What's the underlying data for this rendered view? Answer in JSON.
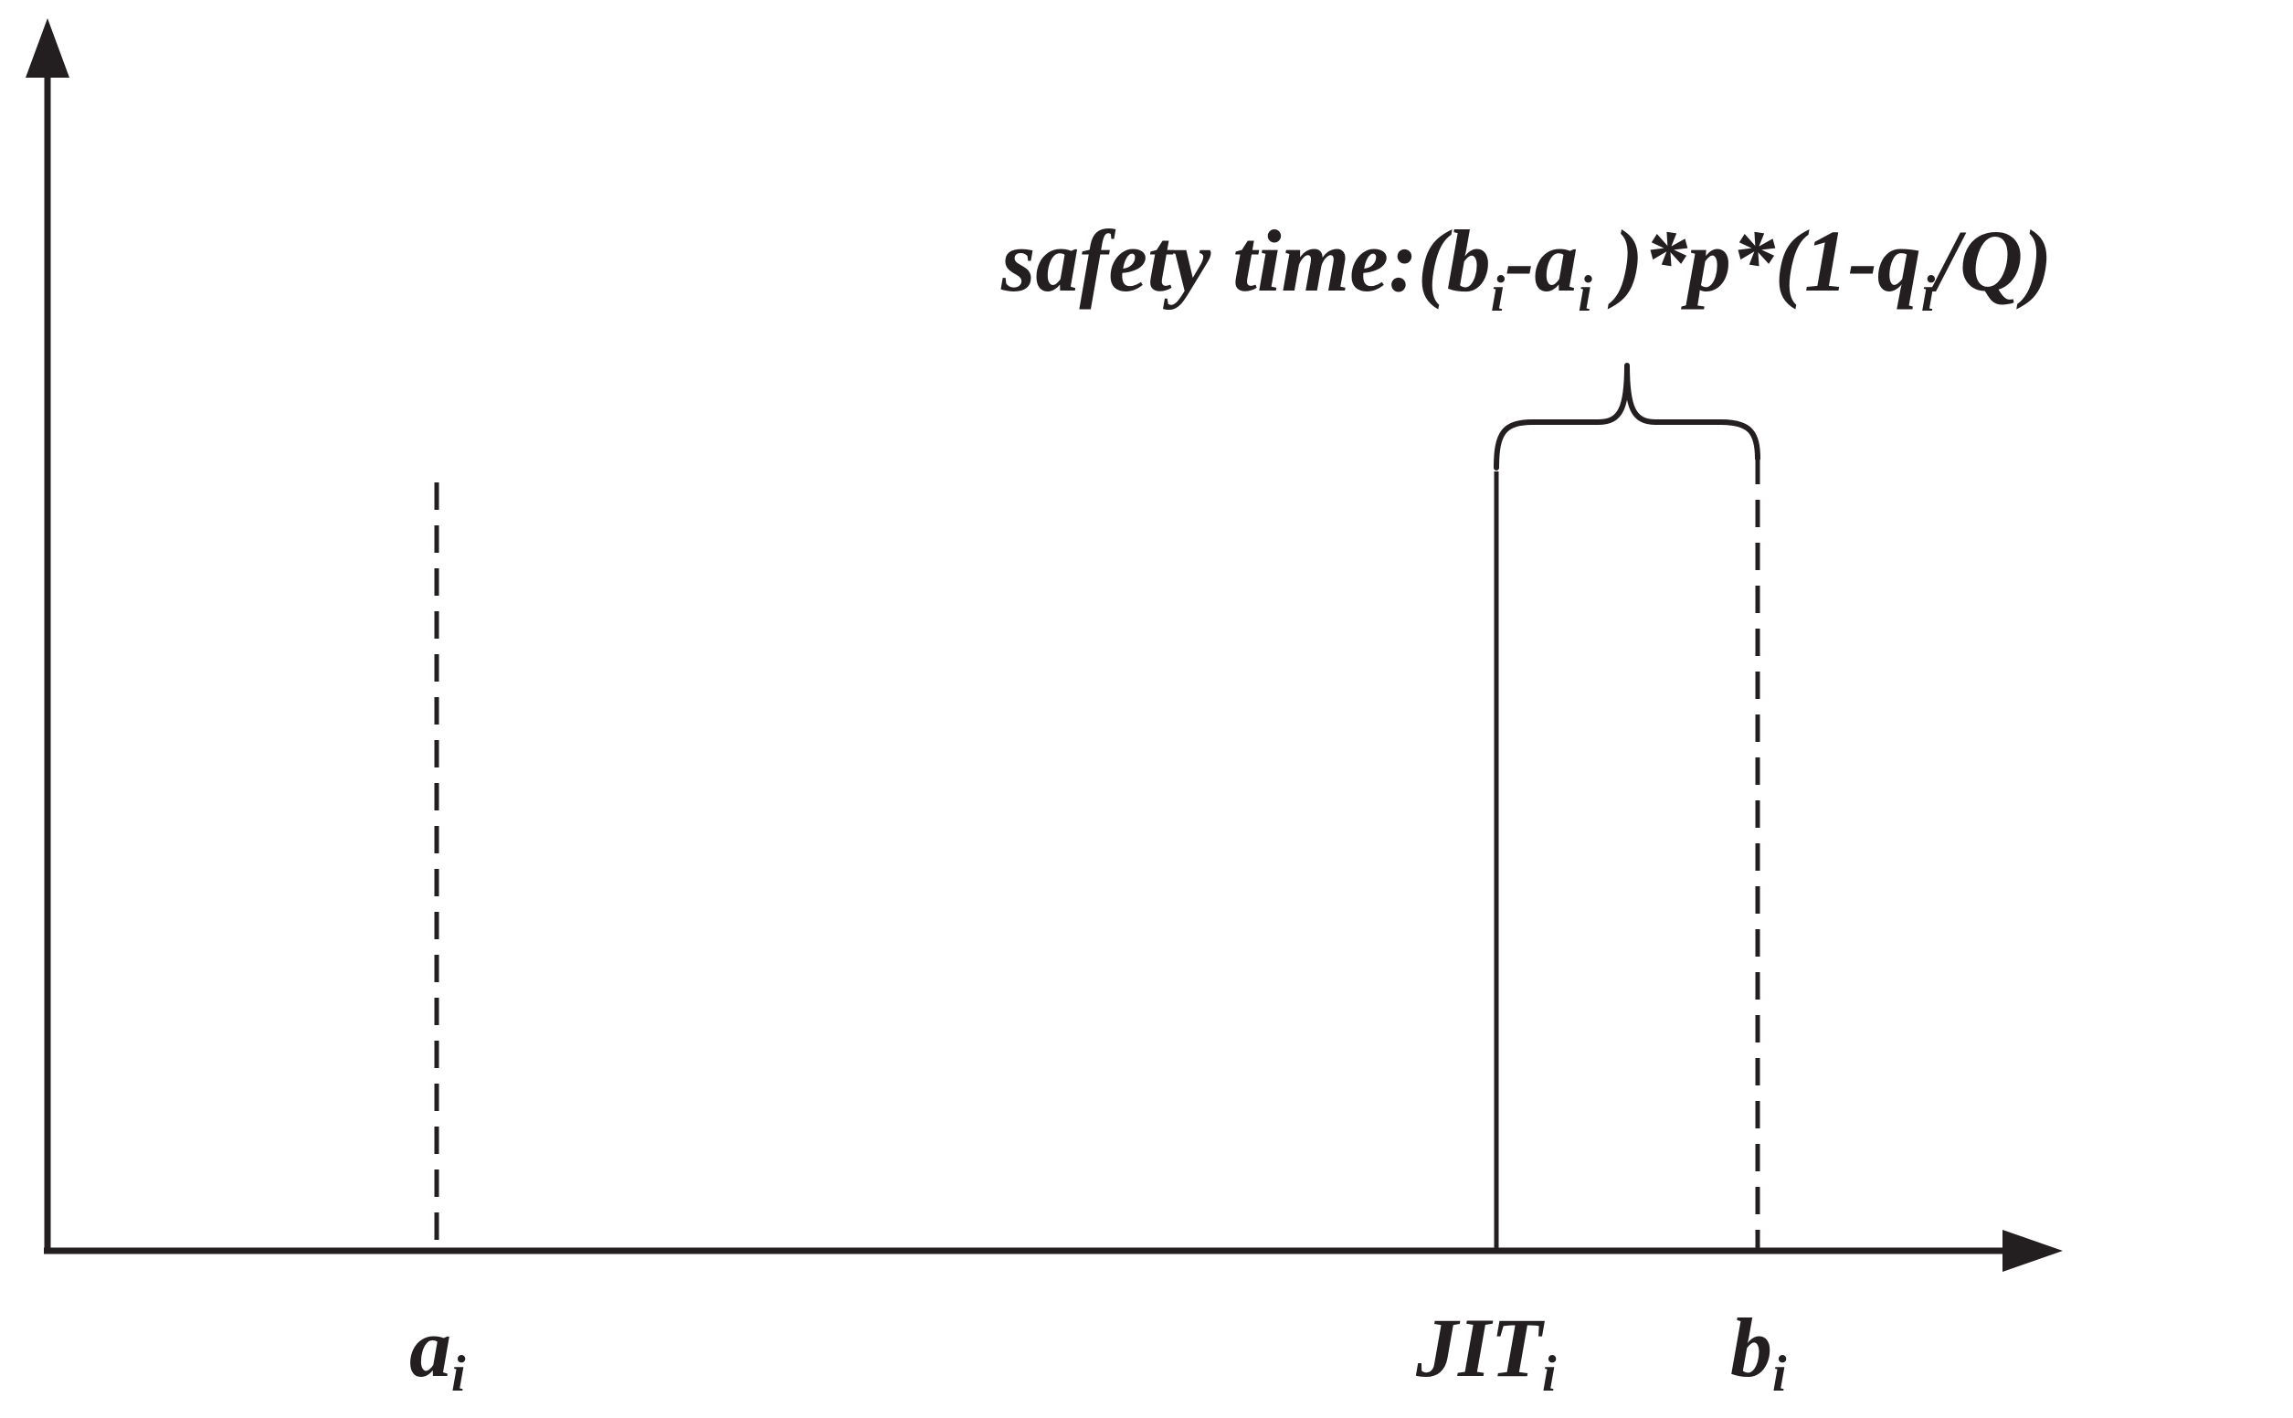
{
  "diagram": {
    "formula": {
      "prefix": "safety time:(b",
      "sub1": "i",
      "mid1": "-a",
      "sub2": "i",
      "mid2": " )*p*(1-q",
      "sub3": "i",
      "suffix": "/Q)"
    },
    "markers": {
      "a": {
        "base": "a",
        "sub": "i"
      },
      "jit": {
        "base": "JIT",
        "sub": "i"
      },
      "b": {
        "base": "b",
        "sub": "i"
      }
    },
    "colors": {
      "ink": "#231f20",
      "background": "#ffffff"
    }
  }
}
